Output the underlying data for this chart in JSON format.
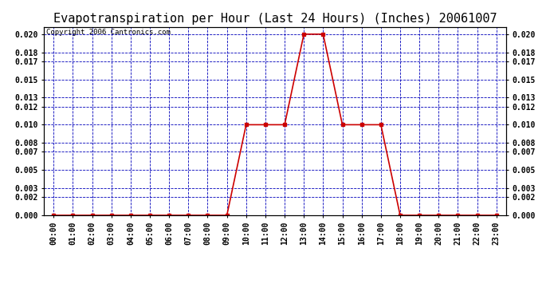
{
  "title": "Evapotranspiration per Hour (Last 24 Hours) (Inches) 20061007",
  "copyright": "Copyright 2006 Cantronics.com",
  "hours": [
    0,
    1,
    2,
    3,
    4,
    5,
    6,
    7,
    8,
    9,
    10,
    11,
    12,
    13,
    14,
    15,
    16,
    17,
    18,
    19,
    20,
    21,
    22,
    23
  ],
  "values": [
    0.0,
    0.0,
    0.0,
    0.0,
    0.0,
    0.0,
    0.0,
    0.0,
    0.0,
    0.0,
    0.01,
    0.01,
    0.01,
    0.02,
    0.02,
    0.01,
    0.01,
    0.01,
    0.0,
    0.0,
    0.0,
    0.0,
    0.0,
    0.0
  ],
  "x_labels": [
    "00:00",
    "01:00",
    "02:00",
    "03:00",
    "04:00",
    "05:00",
    "06:00",
    "07:00",
    "08:00",
    "09:00",
    "10:00",
    "11:00",
    "12:00",
    "13:00",
    "14:00",
    "15:00",
    "16:00",
    "17:00",
    "18:00",
    "19:00",
    "20:00",
    "21:00",
    "22:00",
    "23:00"
  ],
  "yticks": [
    0.0,
    0.002,
    0.003,
    0.005,
    0.007,
    0.008,
    0.01,
    0.012,
    0.013,
    0.015,
    0.017,
    0.018,
    0.02
  ],
  "ylim": [
    0.0,
    0.0208
  ],
  "line_color": "#cc0000",
  "marker": "s",
  "marker_size": 2.5,
  "grid_color": "#0000bb",
  "bg_color": "#ffffff",
  "plot_bg_color": "#ffffff",
  "title_fontsize": 11,
  "tick_fontsize": 7,
  "copyright_fontsize": 6.5
}
